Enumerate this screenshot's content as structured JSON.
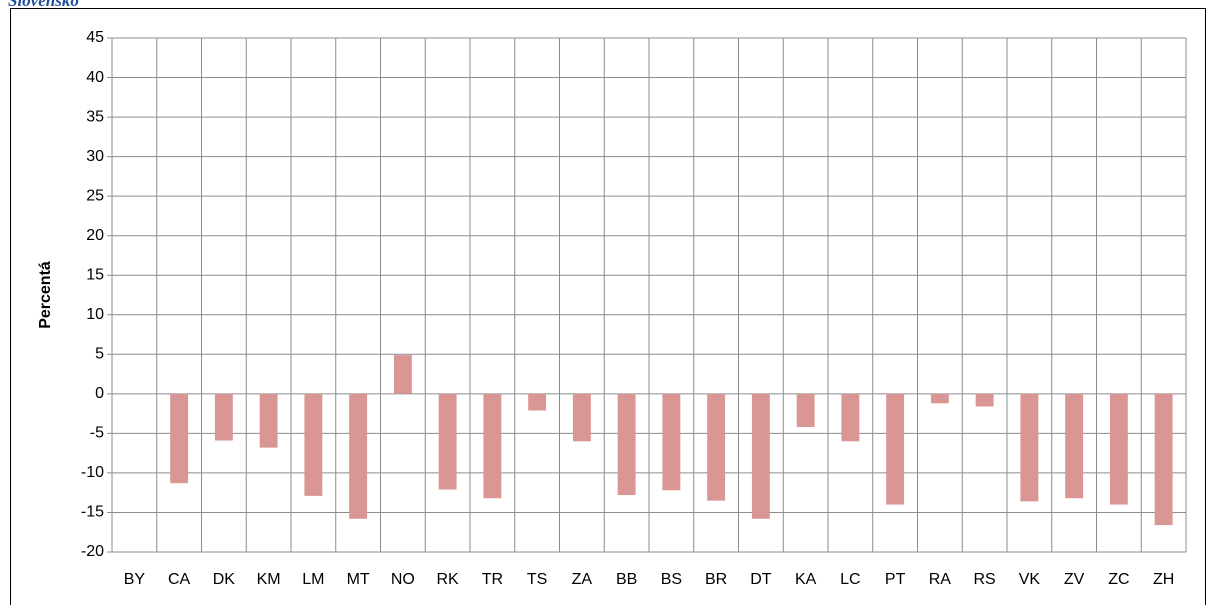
{
  "chart_data": {
    "type": "bar",
    "title": "Slovensko",
    "y_label": "Percentá",
    "categories": [
      "BY",
      "CA",
      "DK",
      "KM",
      "LM",
      "MT",
      "NO",
      "RK",
      "TR",
      "TS",
      "ZA",
      "BB",
      "BS",
      "BR",
      "DT",
      "KA",
      "LC",
      "PT",
      "RA",
      "RS",
      "VK",
      "ZV",
      "ZC",
      "ZH"
    ],
    "values": [
      null,
      -11.3,
      -5.9,
      -6.8,
      -12.9,
      -15.8,
      4.9,
      -12.1,
      -13.2,
      -2.1,
      -6.0,
      -12.8,
      -12.2,
      -13.5,
      -15.8,
      -4.2,
      -6.0,
      -14.0,
      -1.2,
      -1.6,
      -13.6,
      -13.2,
      -14.0,
      -16.6
    ],
    "color": "#d99694",
    "ylim": [
      -20,
      45
    ],
    "yticks": [
      -20,
      -15,
      -10,
      -5,
      0,
      5,
      10,
      15,
      20,
      25,
      30,
      35,
      40,
      45
    ],
    "grid": true
  }
}
